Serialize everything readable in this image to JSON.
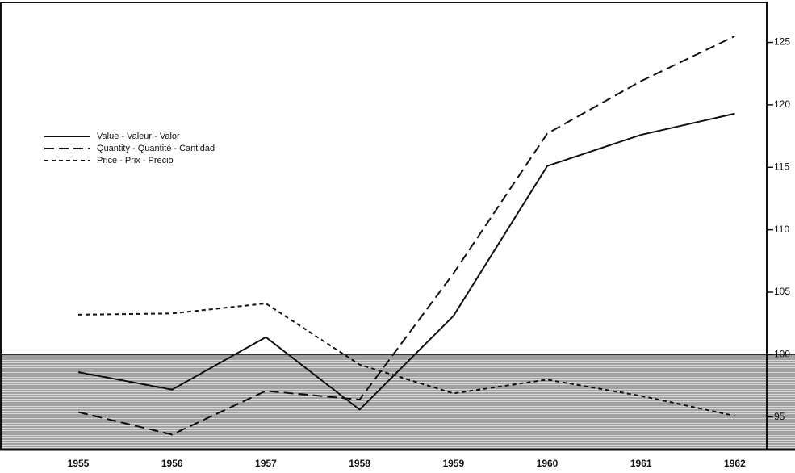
{
  "chart_data": {
    "type": "line",
    "categories": [
      "1955",
      "1956",
      "1957",
      "1958",
      "1959",
      "1960",
      "1961",
      "1962"
    ],
    "series": [
      {
        "name": "Value - Valeur - Valor",
        "color": "#111111",
        "dash": "solid",
        "values": [
          98.6,
          97.2,
          101.4,
          95.6,
          103.1,
          115.1,
          117.6,
          119.3
        ]
      },
      {
        "name": "Quantity - Quantité - Cantidad",
        "color": "#111111",
        "dash": "long",
        "values": [
          95.4,
          93.6,
          97.1,
          96.4,
          106.5,
          117.7,
          121.9,
          125.5
        ]
      },
      {
        "name": "Price - Prix - Precio",
        "color": "#111111",
        "dash": "short",
        "values": [
          103.2,
          103.3,
          104.1,
          99.2,
          96.9,
          98.0,
          96.7,
          95.1
        ]
      }
    ],
    "ylim": [
      92.4,
      128.2
    ],
    "yticks": [
      95,
      100,
      105,
      110,
      115,
      120,
      125
    ],
    "y_axis_side": "right",
    "legend": "upper left"
  }
}
